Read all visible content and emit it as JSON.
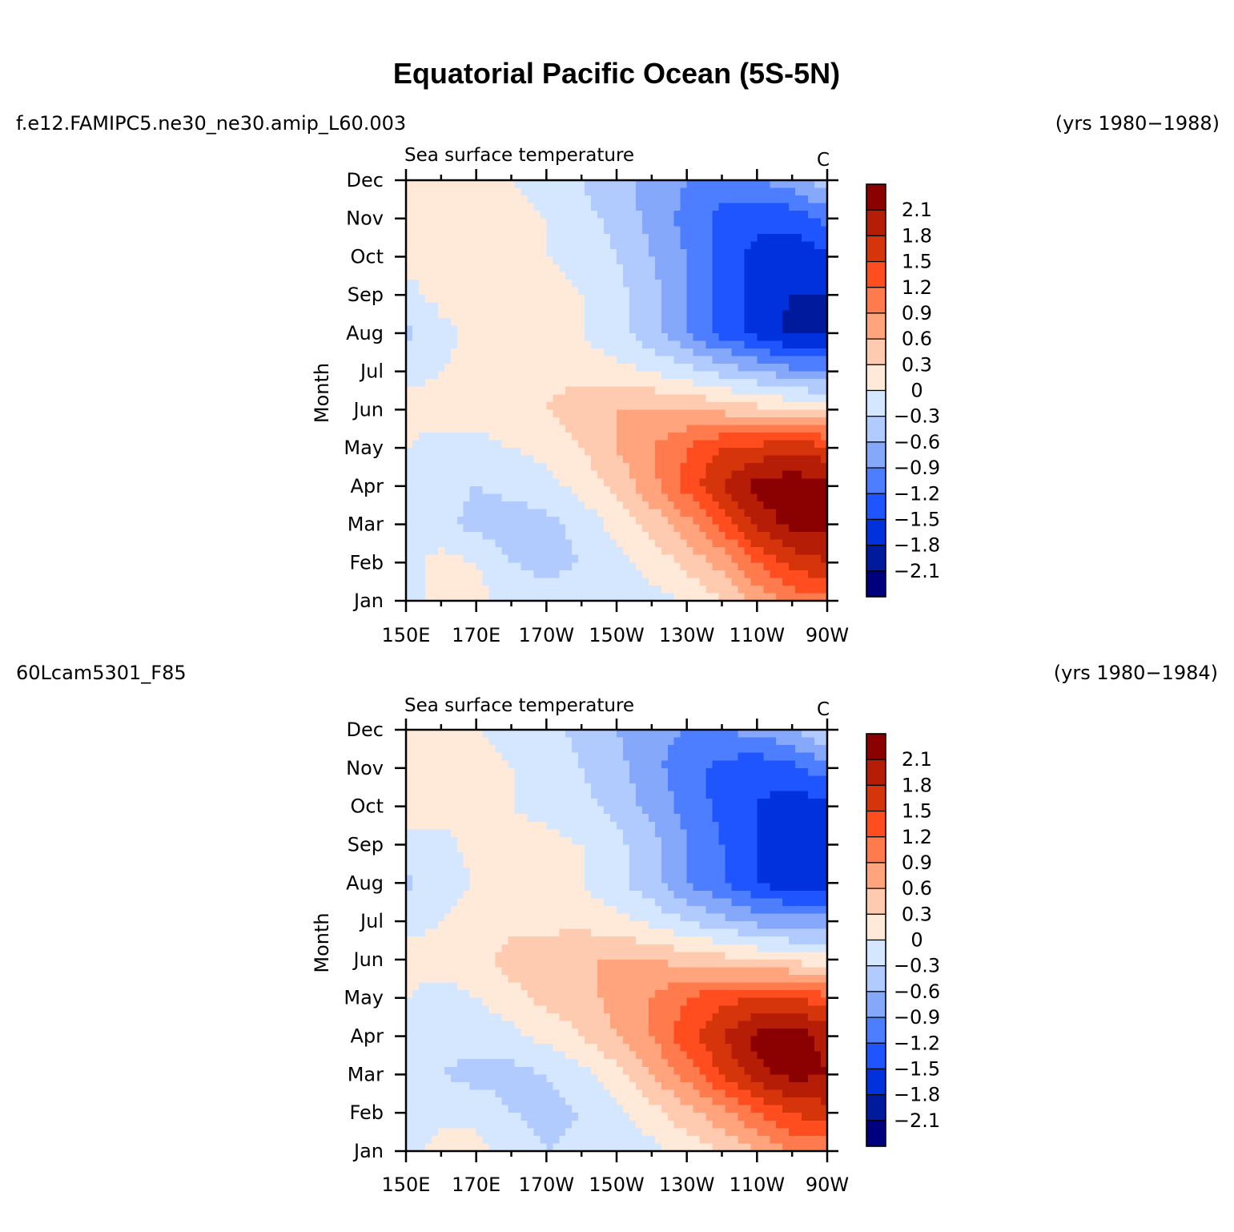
{
  "figure": {
    "title": "Equatorial Pacific Ocean (5S-5N)"
  },
  "panels": [
    {
      "case_name": "f.e12.FAMIPC5.ne30_ne30.amip_L60.003",
      "years": "(yrs 1980−1988)",
      "variable": "Sea surface temperature",
      "units": "C"
    },
    {
      "case_name": "60Lcam5301_F85",
      "years": "(yrs 1980−1984)",
      "variable": "Sea surface temperature",
      "units": "C"
    }
  ],
  "chart_data": [
    {
      "type": "heatmap",
      "title": "Sea surface temperature",
      "units": "C",
      "xlabel": "",
      "ylabel": "Month",
      "x_ticks": [
        "150E",
        "170E",
        "170W",
        "150W",
        "130W",
        "110W",
        "90W"
      ],
      "x_values": [
        150,
        170,
        190,
        210,
        230,
        250,
        270
      ],
      "y_ticks": [
        "Jan",
        "Feb",
        "Mar",
        "Apr",
        "May",
        "Jun",
        "Jul",
        "Aug",
        "Sep",
        "Oct",
        "Nov",
        "Dec"
      ],
      "xlim": [
        150,
        270
      ],
      "ylim": [
        1,
        12
      ],
      "colorbar": {
        "labels": [
          "2.1",
          "1.8",
          "1.5",
          "1.2",
          "0.9",
          "0.6",
          "0.3",
          "0",
          "−0.3",
          "−0.6",
          "−0.9",
          "−1.2",
          "−1.5",
          "−1.8",
          "−2.1"
        ],
        "levels": [
          2.1,
          1.8,
          1.5,
          1.2,
          0.9,
          0.6,
          0.3,
          0,
          -0.3,
          -0.6,
          -0.9,
          -1.2,
          -1.5,
          -1.8,
          -2.1
        ],
        "colors": [
          "#8b0000",
          "#b51d06",
          "#d6340b",
          "#ff4d1f",
          "#ff7a4d",
          "#ffa47c",
          "#ffcbb0",
          "#ffe9d9",
          "#d4e7ff",
          "#b2cbff",
          "#85a8fa",
          "#4c7eff",
          "#1f55ff",
          "#0031dd",
          "#001a9e",
          "#00007f"
        ]
      },
      "anomaly_grid_approx": {
        "lon": [
          150,
          160,
          170,
          180,
          190,
          200,
          210,
          220,
          230,
          240,
          250,
          260,
          270
        ],
        "rows": [
          {
            "month": "Jan",
            "values": [
              -0.1,
              0.1,
              0.1,
              -0.1,
              -0.2,
              -0.1,
              -0.1,
              -0.1,
              0.0,
              0.3,
              0.7,
              1.0,
              1.1
            ]
          },
          {
            "month": "Feb",
            "values": [
              -0.1,
              0.1,
              0.0,
              -0.3,
              -0.4,
              -0.3,
              -0.1,
              0.1,
              0.4,
              0.7,
              1.2,
              1.6,
              1.8
            ]
          },
          {
            "month": "Mar",
            "values": [
              -0.1,
              -0.2,
              -0.4,
              -0.5,
              -0.4,
              -0.2,
              0.1,
              0.4,
              0.8,
              1.3,
              1.9,
              2.2,
              2.2
            ]
          },
          {
            "month": "Apr",
            "values": [
              -0.1,
              -0.2,
              -0.3,
              -0.2,
              -0.1,
              0.1,
              0.4,
              0.8,
              1.3,
              1.8,
              2.2,
              2.3,
              2.2
            ]
          },
          {
            "month": "May",
            "values": [
              0.0,
              -0.1,
              -0.1,
              0.0,
              0.1,
              0.3,
              0.6,
              0.9,
              1.2,
              1.5,
              1.6,
              1.7,
              1.6
            ]
          },
          {
            "month": "Jun",
            "values": [
              0.1,
              0.1,
              0.1,
              0.2,
              0.3,
              0.5,
              0.6,
              0.6,
              0.6,
              0.5,
              0.4,
              0.3,
              0.2
            ]
          },
          {
            "month": "Jul",
            "values": [
              -0.1,
              0.0,
              0.1,
              0.1,
              0.2,
              0.2,
              0.1,
              0.0,
              -0.2,
              -0.4,
              -0.6,
              -0.8,
              -0.9
            ]
          },
          {
            "month": "Aug",
            "values": [
              -0.4,
              -0.1,
              0.1,
              0.1,
              0.1,
              0.0,
              -0.2,
              -0.5,
              -0.9,
              -1.3,
              -1.6,
              -1.9,
              -1.8
            ]
          },
          {
            "month": "Sep",
            "values": [
              -0.1,
              0.1,
              0.1,
              0.1,
              0.1,
              0.0,
              -0.2,
              -0.5,
              -0.9,
              -1.3,
              -1.6,
              -1.8,
              -1.8
            ]
          },
          {
            "month": "Oct",
            "values": [
              0.1,
              0.1,
              0.1,
              0.1,
              0.0,
              -0.1,
              -0.3,
              -0.6,
              -0.9,
              -1.3,
              -1.6,
              -1.7,
              -1.6
            ]
          },
          {
            "month": "Nov",
            "values": [
              0.1,
              0.1,
              0.1,
              0.1,
              0.0,
              -0.2,
              -0.4,
              -0.7,
              -1.0,
              -1.3,
              -1.4,
              -1.4,
              -1.1
            ]
          },
          {
            "month": "Dec",
            "values": [
              0.1,
              0.1,
              0.1,
              0.0,
              -0.1,
              -0.3,
              -0.5,
              -0.7,
              -0.9,
              -1.0,
              -0.9,
              -0.7,
              -0.4
            ]
          }
        ]
      }
    },
    {
      "type": "heatmap",
      "title": "Sea surface temperature",
      "units": "C",
      "xlabel": "",
      "ylabel": "Month",
      "x_ticks": [
        "150E",
        "170E",
        "170W",
        "150W",
        "130W",
        "110W",
        "90W"
      ],
      "x_values": [
        150,
        170,
        190,
        210,
        230,
        250,
        270
      ],
      "y_ticks": [
        "Jan",
        "Feb",
        "Mar",
        "Apr",
        "May",
        "Jun",
        "Jul",
        "Aug",
        "Sep",
        "Oct",
        "Nov",
        "Dec"
      ],
      "xlim": [
        150,
        270
      ],
      "ylim": [
        1,
        12
      ],
      "colorbar": {
        "labels": [
          "2.1",
          "1.8",
          "1.5",
          "1.2",
          "0.9",
          "0.6",
          "0.3",
          "0",
          "−0.3",
          "−0.6",
          "−0.9",
          "−1.2",
          "−1.5",
          "−1.8",
          "−2.1"
        ],
        "levels": [
          2.1,
          1.8,
          1.5,
          1.2,
          0.9,
          0.6,
          0.3,
          0,
          -0.3,
          -0.6,
          -0.9,
          -1.2,
          -1.5,
          -1.8,
          -2.1
        ],
        "colors": [
          "#8b0000",
          "#b51d06",
          "#d6340b",
          "#ff4d1f",
          "#ff7a4d",
          "#ffa47c",
          "#ffcbb0",
          "#ffe9d9",
          "#d4e7ff",
          "#b2cbff",
          "#85a8fa",
          "#4c7eff",
          "#1f55ff",
          "#0031dd",
          "#001a9e",
          "#00007f"
        ]
      },
      "anomaly_grid_approx": {
        "lon": [
          150,
          160,
          170,
          180,
          190,
          200,
          210,
          220,
          230,
          240,
          250,
          260,
          270
        ],
        "rows": [
          {
            "month": "Jan",
            "values": [
              -0.1,
              0.1,
              0.1,
              -0.1,
              -0.3,
              -0.2,
              -0.1,
              -0.1,
              0.1,
              0.3,
              0.6,
              0.9,
              1.0
            ]
          },
          {
            "month": "Feb",
            "values": [
              -0.1,
              -0.1,
              -0.1,
              -0.3,
              -0.4,
              -0.3,
              -0.1,
              0.2,
              0.5,
              0.8,
              1.2,
              1.5,
              1.7
            ]
          },
          {
            "month": "Mar",
            "values": [
              -0.1,
              -0.3,
              -0.4,
              -0.4,
              -0.3,
              -0.1,
              0.2,
              0.6,
              1.0,
              1.5,
              2.0,
              2.2,
              2.1
            ]
          },
          {
            "month": "Apr",
            "values": [
              -0.1,
              -0.2,
              -0.2,
              -0.1,
              0.1,
              0.3,
              0.6,
              0.9,
              1.4,
              1.8,
              2.2,
              2.3,
              2.0
            ]
          },
          {
            "month": "May",
            "values": [
              0.0,
              -0.1,
              0.0,
              0.2,
              0.4,
              0.5,
              0.7,
              0.9,
              1.2,
              1.4,
              1.5,
              1.5,
              1.3
            ]
          },
          {
            "month": "Jun",
            "values": [
              0.1,
              0.1,
              0.2,
              0.4,
              0.5,
              0.6,
              0.6,
              0.6,
              0.5,
              0.4,
              0.3,
              0.2,
              0.1
            ]
          },
          {
            "month": "Jul",
            "values": [
              -0.1,
              0.0,
              0.1,
              0.2,
              0.2,
              0.2,
              0.1,
              -0.1,
              -0.3,
              -0.5,
              -0.7,
              -0.8,
              -0.8
            ]
          },
          {
            "month": "Aug",
            "values": [
              -0.4,
              -0.1,
              0.0,
              0.1,
              0.1,
              0.0,
              -0.2,
              -0.5,
              -0.9,
              -1.2,
              -1.5,
              -1.7,
              -1.7
            ]
          },
          {
            "month": "Sep",
            "values": [
              -0.1,
              -0.1,
              0.1,
              0.1,
              0.1,
              0.0,
              -0.2,
              -0.5,
              -0.9,
              -1.2,
              -1.5,
              -1.7,
              -1.7
            ]
          },
          {
            "month": "Oct",
            "values": [
              0.1,
              0.1,
              0.1,
              0.0,
              -0.1,
              -0.2,
              -0.4,
              -0.7,
              -1.0,
              -1.3,
              -1.5,
              -1.7,
              -1.6
            ]
          },
          {
            "month": "Nov",
            "values": [
              0.1,
              0.1,
              0.1,
              0.0,
              -0.1,
              -0.3,
              -0.5,
              -0.8,
              -1.1,
              -1.3,
              -1.4,
              -1.3,
              -1.0
            ]
          },
          {
            "month": "Dec",
            "values": [
              0.1,
              0.1,
              0.0,
              -0.1,
              -0.2,
              -0.4,
              -0.6,
              -0.8,
              -0.9,
              -0.9,
              -0.8,
              -0.6,
              -0.3
            ]
          }
        ]
      }
    }
  ]
}
